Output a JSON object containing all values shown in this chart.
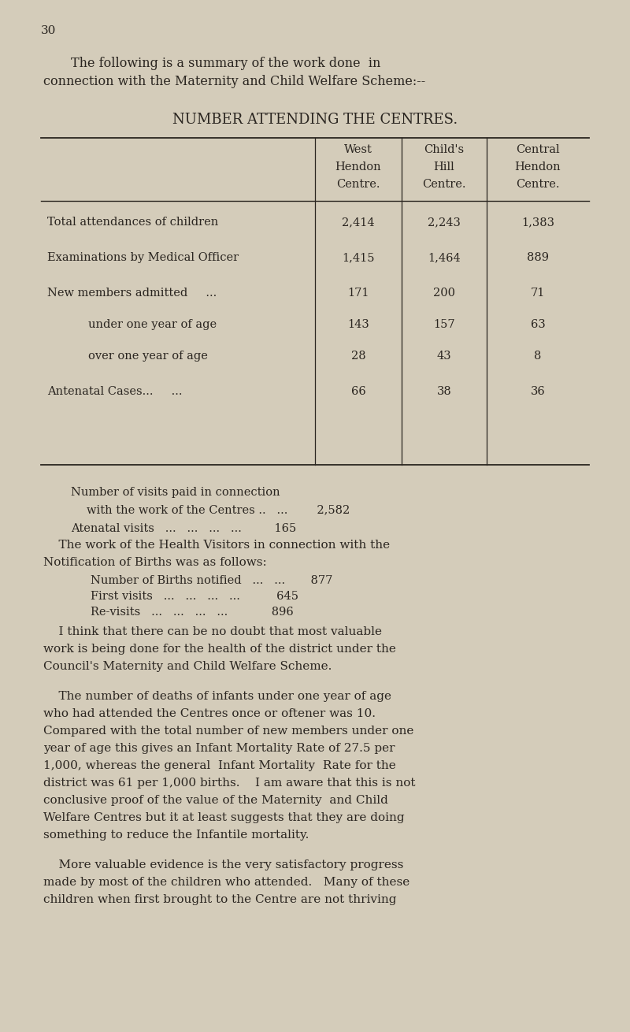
{
  "page_number": "30",
  "bg_color": "#d4ccba",
  "text_color": "#2a2520",
  "intro_line1": "The following is a summary of the work done  in",
  "intro_line2": "connection with the Maternity and Child Welfare Scheme:--",
  "table_title": "NUMBER ATTENDING THE CENTRES.",
  "col_headers": [
    [
      "West",
      "Hendon",
      "Centre."
    ],
    [
      "Child's",
      "Hill",
      "Centre."
    ],
    [
      "Central",
      "Hendon",
      "Centre."
    ]
  ],
  "row_labels": [
    "Total attendances of children",
    "Examinations by Medical Officer",
    "New members admitted     ...",
    "under one year of age",
    "over one year of age",
    "Antenatal Cases...     ..."
  ],
  "row_indented": [
    false,
    false,
    false,
    true,
    true,
    false
  ],
  "table_data": [
    [
      "2,414",
      "2,243",
      "1,383"
    ],
    [
      "1,415",
      "1,464",
      "889"
    ],
    [
      "171",
      "200",
      "71"
    ],
    [
      "143",
      "157",
      "63"
    ],
    [
      "28",
      "43",
      "8"
    ],
    [
      "66",
      "38",
      "36"
    ]
  ],
  "visit_line1": "Number of visits paid in connection",
  "visit_line2": "with the work of the Centres ..   ...        2,582",
  "visit_line3": "Atenatal visits   ...   ...   ...   ...         165",
  "hv_line1": "    The work of the Health Visitors in connection with the",
  "hv_line2": "Notification of Births was as follows:",
  "birth_line1": "Number of Births notified   ...   ...       877",
  "birth_line2": "First visits   ...   ...   ...   ...          645",
  "birth_line3": "Re-visits   ...   ...   ...   ...            896",
  "para1_lines": [
    "    I think that there can be no doubt that most valuable",
    "work is being done for the health of the district under the",
    "Council's Maternity and Child Welfare Scheme."
  ],
  "para2_lines": [
    "    The number of deaths of infants under one year of age",
    "who had attended the Centres once or oftener was 10.",
    "Compared with the total number of new members under one",
    "year of age this gives an Infant Mortality Rate of 27.5 per",
    "1,000, whereas the general  Infant Mortality  Rate for the",
    "district was 61 per 1,000 births.    I am aware that this is not",
    "conclusive proof of the value of the Maternity  and Child",
    "Welfare Centres but it at least suggests that they are doing",
    "something to reduce the Infantile mortality."
  ],
  "para3_lines": [
    "    More valuable evidence is the very satisfactory progress",
    "made by most of the children who attended.   Many of these",
    "children when first brought to the Centre are not thriving"
  ]
}
